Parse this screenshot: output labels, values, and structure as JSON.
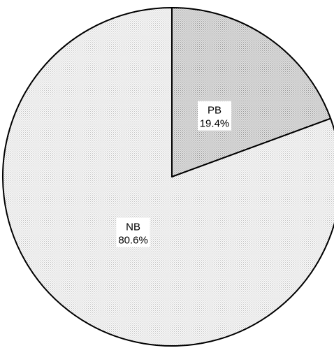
{
  "chart_data": {
    "type": "pie",
    "categories": [
      "PB",
      "NB"
    ],
    "values": [
      19.4,
      80.6
    ],
    "value_labels": [
      "19.4%",
      "80.6%"
    ],
    "start_angle_deg": 0,
    "direction": "clockwise",
    "legend": "none",
    "colors": {
      "PB": "#c8c8c8",
      "NB": "#ececec",
      "outline": "#000000"
    }
  }
}
